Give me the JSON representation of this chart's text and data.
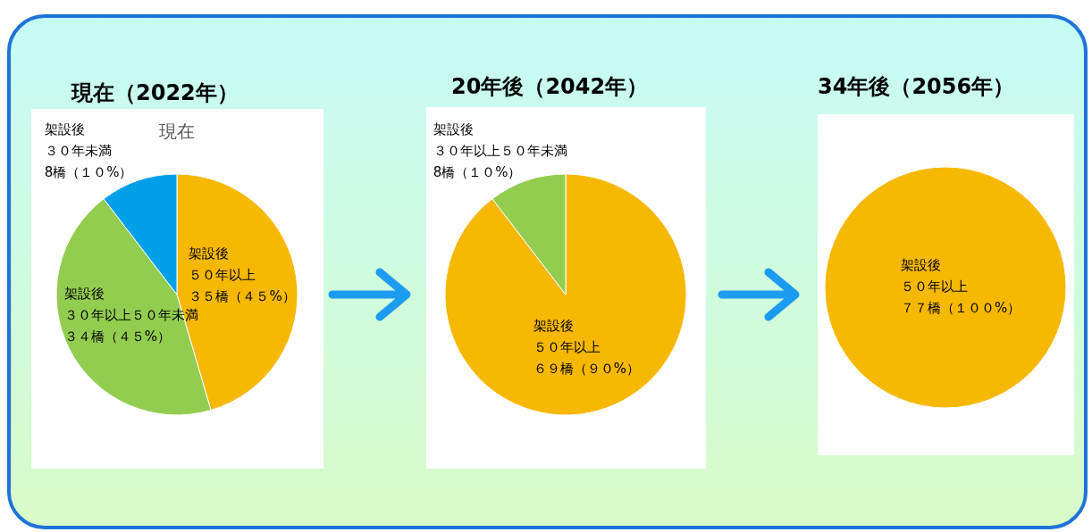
{
  "chart_data": [
    {
      "type": "pie",
      "title": "現在（2022年）",
      "subtitle": "現在",
      "categories": [
        "架設後５０年以上",
        "架設後３０年以上５０年未満",
        "架設後３０年未満"
      ],
      "values": [
        35,
        34,
        8
      ],
      "colors": [
        "#f6b800",
        "#92cd50",
        "#00a0e8"
      ],
      "value_labels": [
        "３５橋（４５%）",
        "３４橋（４５%）",
        "8橋（１０%）"
      ]
    },
    {
      "type": "pie",
      "title": "20年後（2042年）",
      "categories": [
        "架設後５０年以上",
        "架設後３０年以上５０年未満"
      ],
      "values": [
        69,
        8
      ],
      "colors": [
        "#f6b800",
        "#92cd50"
      ],
      "value_labels": [
        "６９橋（９０%）",
        "8橋（１０%）"
      ]
    },
    {
      "type": "pie",
      "title": "34年後（2056年）",
      "categories": [
        "架設後５０年以上"
      ],
      "values": [
        77
      ],
      "colors": [
        "#f6b800"
      ],
      "value_labels": [
        "７７橋（１００%）"
      ]
    }
  ]
}
